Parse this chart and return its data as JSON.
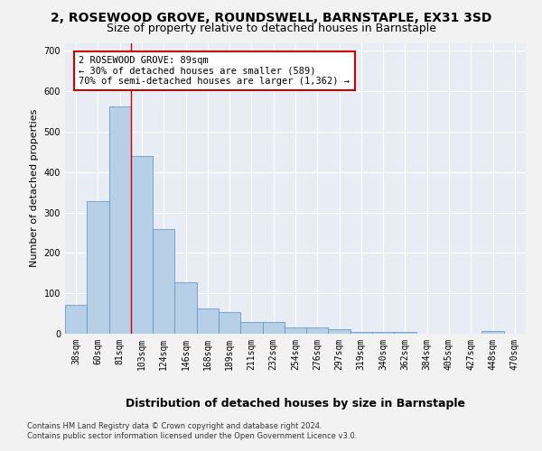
{
  "title": "2, ROSEWOOD GROVE, ROUNDSWELL, BARNSTAPLE, EX31 3SD",
  "subtitle": "Size of property relative to detached houses in Barnstaple",
  "xlabel": "Distribution of detached houses by size in Barnstaple",
  "ylabel": "Number of detached properties",
  "categories": [
    "38sqm",
    "60sqm",
    "81sqm",
    "103sqm",
    "124sqm",
    "146sqm",
    "168sqm",
    "189sqm",
    "211sqm",
    "232sqm",
    "254sqm",
    "276sqm",
    "297sqm",
    "319sqm",
    "340sqm",
    "362sqm",
    "384sqm",
    "405sqm",
    "427sqm",
    "448sqm",
    "470sqm"
  ],
  "values": [
    72,
    328,
    562,
    440,
    258,
    128,
    63,
    53,
    28,
    28,
    15,
    15,
    12,
    5,
    5,
    5,
    0,
    0,
    0,
    6,
    0
  ],
  "bar_color": "#b8cfe8",
  "bar_edge_color": "#6699cc",
  "bg_color": "#e8edf5",
  "grid_color": "#ffffff",
  "vline_bar_index": 2,
  "vline_color": "#cc0000",
  "annotation_line1": "2 ROSEWOOD GROVE: 89sqm",
  "annotation_line2": "← 30% of detached houses are smaller (589)",
  "annotation_line3": "70% of semi-detached houses are larger (1,362) →",
  "annotation_box_color": "#ffffff",
  "annotation_box_edge_color": "#cc0000",
  "ylim": [
    0,
    720
  ],
  "yticks": [
    0,
    100,
    200,
    300,
    400,
    500,
    600,
    700
  ],
  "footer_line1": "Contains HM Land Registry data © Crown copyright and database right 2024.",
  "footer_line2": "Contains public sector information licensed under the Open Government Licence v3.0.",
  "title_fontsize": 10,
  "subtitle_fontsize": 9,
  "ylabel_fontsize": 8,
  "xlabel_fontsize": 9,
  "tick_fontsize": 7,
  "annotation_fontsize": 7.5,
  "footer_fontsize": 6
}
